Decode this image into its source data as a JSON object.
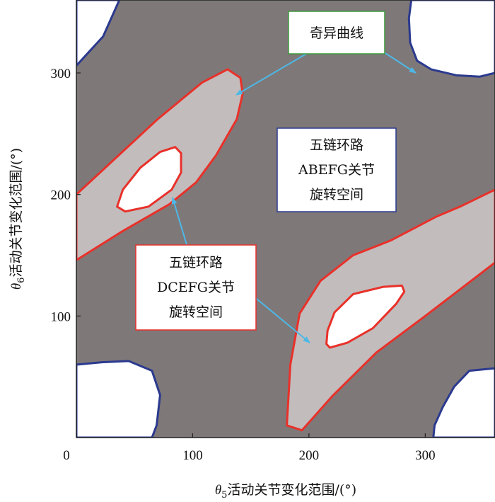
{
  "chart_data": {
    "type": "region-map",
    "xlabel": {
      "symbol": "θ",
      "sub": "5",
      "text": "活动关节变化范围/(°)"
    },
    "ylabel": {
      "symbol": "θ",
      "sub": "6",
      "text": "活动关节变化范围/(°)"
    },
    "xlim": [
      0,
      360
    ],
    "ylim": [
      0,
      360
    ],
    "xticks": [
      0,
      100,
      200,
      300
    ],
    "yticks": [
      100,
      200,
      300
    ],
    "colors": {
      "abefg_region": "#7f7878",
      "dcefg_region": "#c2bcbc",
      "singular_boundary": "#e8312a",
      "outer_boundary": "#2b3a8f",
      "arrow": "#4db8e6",
      "annotation_border_green": "#3a9a3a",
      "annotation_border_blue": "#2b3a8f",
      "annotation_border_red": "#e8312a"
    },
    "regions": {
      "dcefg_band_1": [
        [
          0,
          146
        ],
        [
          40,
          170
        ],
        [
          80,
          192
        ],
        [
          103,
          210
        ],
        [
          120,
          232
        ],
        [
          138,
          262
        ],
        [
          143,
          283
        ],
        [
          141,
          296
        ],
        [
          130,
          303
        ],
        [
          108,
          292
        ],
        [
          70,
          262
        ],
        [
          35,
          231
        ],
        [
          0,
          200
        ]
      ],
      "dcefg_band_2": [
        [
          360,
          204
        ],
        [
          330,
          190
        ],
        [
          310,
          182
        ],
        [
          270,
          162
        ],
        [
          238,
          150
        ],
        [
          210,
          129
        ],
        [
          192,
          102
        ],
        [
          184,
          60
        ],
        [
          181,
          10
        ],
        [
          194,
          6
        ],
        [
          220,
          34
        ],
        [
          258,
          70
        ],
        [
          300,
          100
        ],
        [
          330,
          122
        ],
        [
          360,
          144
        ]
      ],
      "hole_1": [
        [
          35,
          190
        ],
        [
          42,
          186
        ],
        [
          62,
          190
        ],
        [
          82,
          204
        ],
        [
          90,
          218
        ],
        [
          90,
          234
        ],
        [
          85,
          239
        ],
        [
          72,
          235
        ],
        [
          55,
          222
        ],
        [
          40,
          204
        ]
      ],
      "hole_2": [
        [
          215,
          77
        ],
        [
          218,
          74
        ],
        [
          233,
          78
        ],
        [
          255,
          90
        ],
        [
          275,
          110
        ],
        [
          282,
          120
        ],
        [
          280,
          125
        ],
        [
          264,
          124
        ],
        [
          238,
          118
        ],
        [
          222,
          103
        ],
        [
          216,
          88
        ]
      ],
      "corner_top_left": [
        [
          0,
          360
        ],
        [
          37,
          360
        ],
        [
          23,
          330
        ],
        [
          0,
          306
        ]
      ],
      "corner_top_right": [
        [
          288,
          360
        ],
        [
          360,
          360
        ],
        [
          360,
          300
        ],
        [
          347,
          297
        ],
        [
          327,
          298
        ],
        [
          305,
          303
        ],
        [
          293,
          310
        ],
        [
          287,
          325
        ],
        [
          286,
          345
        ]
      ],
      "corner_bottom_left": [
        [
          0,
          60
        ],
        [
          22,
          62
        ],
        [
          45,
          63
        ],
        [
          65,
          55
        ],
        [
          72,
          35
        ],
        [
          69,
          10
        ],
        [
          65,
          0
        ],
        [
          0,
          0
        ]
      ],
      "corner_bottom_right": [
        [
          307,
          0
        ],
        [
          360,
          0
        ],
        [
          360,
          57
        ],
        [
          338,
          55
        ],
        [
          325,
          42
        ],
        [
          315,
          25
        ],
        [
          308,
          10
        ]
      ]
    },
    "annotations": [
      {
        "id": "singular",
        "lines": [
          "奇异曲线"
        ]
      },
      {
        "id": "abefg",
        "lines": [
          "五链环路",
          "ABEFG关节",
          "旋转空间"
        ]
      },
      {
        "id": "dcefg",
        "lines": [
          "五链环路",
          "DCEFG关节",
          "旋转空间"
        ]
      }
    ]
  }
}
